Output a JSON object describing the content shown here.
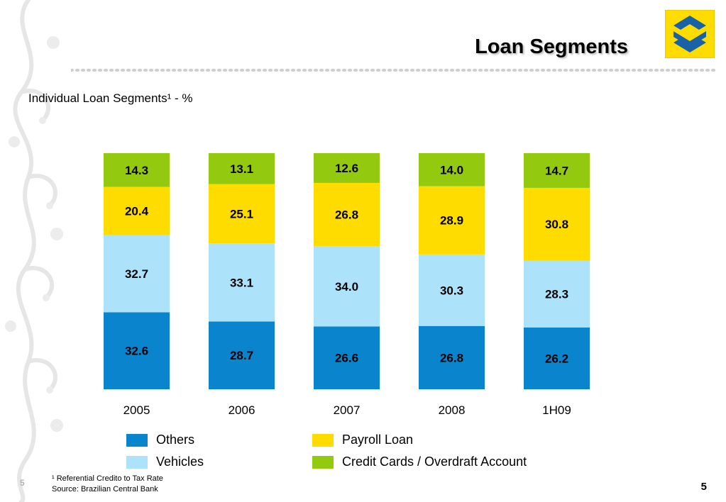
{
  "header": {
    "title": "Loan Segments",
    "subtitle": "Individual Loan Segments¹  - %"
  },
  "chart_data": {
    "type": "bar",
    "stacked": true,
    "categories": [
      "2005",
      "2006",
      "2007",
      "2008",
      "1H09"
    ],
    "series": [
      {
        "name": "Others",
        "color": "#0a84cd",
        "values": [
          32.6,
          28.7,
          26.6,
          26.8,
          26.2
        ]
      },
      {
        "name": "Vehicles",
        "color": "#ade2fb",
        "values": [
          32.7,
          33.1,
          34.0,
          30.3,
          28.3
        ]
      },
      {
        "name": "Payroll Loan",
        "color": "#fedc00",
        "values": [
          20.4,
          25.1,
          26.8,
          28.9,
          30.8
        ]
      },
      {
        "name": "Credit Cards / Overdraft Account",
        "color": "#93c90e",
        "values": [
          14.3,
          13.1,
          12.6,
          14.0,
          14.7
        ]
      }
    ],
    "ylabel": "%",
    "ylim": [
      0,
      100
    ]
  },
  "legend": {
    "others": "Others",
    "vehicles": "Vehicles",
    "payroll": "Payroll Loan",
    "credit": "Credit Cards / Overdraft Account"
  },
  "footer": {
    "note": "¹ Referential Credito to Tax Rate",
    "source": "Source: Brazilian Central Bank",
    "page_left": "5",
    "page_right": "5"
  },
  "colors": {
    "others": "#0a84cd",
    "vehicles": "#ade2fb",
    "payroll": "#fedc00",
    "credit": "#93c90e",
    "logo_bg": "#fedc00",
    "logo_mark": "#1862a8"
  }
}
